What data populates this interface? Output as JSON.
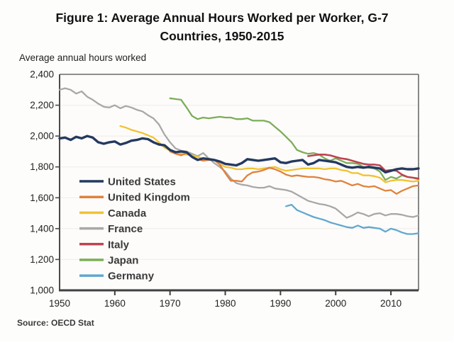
{
  "figure": {
    "title_line1": "Figure 1: Average Annual Hours Worked per Worker, G-7",
    "title_line2": "Countries, 1950-2015",
    "y_axis_title": "Average annual hours worked",
    "source": "Source: OECD Stat"
  },
  "chart_data": {
    "type": "line",
    "title": "Figure 1: Average Annual Hours Worked per Worker, G-7 Countries, 1950-2015",
    "xlabel": "",
    "ylabel": "Average annual hours worked",
    "x_range": [
      1950,
      2015
    ],
    "ylim": [
      1000,
      2400
    ],
    "grid": "faint horizontal lines at each y tick",
    "legend_position": "inside lower-left",
    "y_ticks": [
      {
        "value": 1000,
        "label": "1,000"
      },
      {
        "value": 1200,
        "label": "1,200"
      },
      {
        "value": 1400,
        "label": "1,400"
      },
      {
        "value": 1600,
        "label": "1,600"
      },
      {
        "value": 1800,
        "label": "1,800"
      },
      {
        "value": 2000,
        "label": "2,000"
      },
      {
        "value": 2200,
        "label": "2,200"
      },
      {
        "value": 2400,
        "label": "2,400"
      }
    ],
    "x_ticks": [
      {
        "value": 1950,
        "label": "1950"
      },
      {
        "value": 1960,
        "label": "1960"
      },
      {
        "value": 1970,
        "label": "1970"
      },
      {
        "value": 1980,
        "label": "1980"
      },
      {
        "value": 1990,
        "label": "1990"
      },
      {
        "value": 2000,
        "label": "2000"
      },
      {
        "value": 2010,
        "label": "2010"
      }
    ],
    "colors": {
      "plot_bg": "#fdfcfb",
      "gridline": "#efece7",
      "axis_dark": "#3f3f3f",
      "axis_mid": "#4a4a4a",
      "axis_light": "#6a6a6a",
      "tick_label": "#1f1f1f",
      "legend_text": "#3a3a3a"
    },
    "draw_order": [
      "France",
      "Canada",
      "United Kingdom",
      "Japan",
      "Germany",
      "Italy",
      "United States"
    ],
    "series": [
      {
        "name": "United States",
        "color": "#243960",
        "stroke_width": 3.4,
        "start_year": 1950,
        "values": [
          1985,
          1990,
          1975,
          1995,
          1985,
          2000,
          1990,
          1960,
          1950,
          1960,
          1965,
          1945,
          1955,
          1970,
          1975,
          1985,
          1980,
          1960,
          1945,
          1940,
          1910,
          1895,
          1900,
          1895,
          1865,
          1845,
          1855,
          1850,
          1845,
          1835,
          1820,
          1815,
          1810,
          1825,
          1850,
          1845,
          1840,
          1845,
          1850,
          1855,
          1830,
          1825,
          1835,
          1840,
          1845,
          1815,
          1825,
          1845,
          1840,
          1835,
          1830,
          1815,
          1800,
          1795,
          1800,
          1795,
          1800,
          1795,
          1790,
          1765,
          1775,
          1785,
          1790,
          1785,
          1785,
          1790
        ]
      },
      {
        "name": "United Kingdom",
        "color": "#e2813b",
        "stroke_width": 2.3,
        "start_year": 1970,
        "values": [
          1900,
          1885,
          1875,
          1890,
          1865,
          1850,
          1840,
          1845,
          1845,
          1815,
          1760,
          1710,
          1710,
          1705,
          1745,
          1765,
          1770,
          1780,
          1795,
          1785,
          1770,
          1750,
          1740,
          1745,
          1740,
          1735,
          1735,
          1730,
          1720,
          1715,
          1705,
          1710,
          1695,
          1680,
          1690,
          1675,
          1670,
          1675,
          1660,
          1645,
          1650,
          1625,
          1645,
          1660,
          1675,
          1680
        ]
      },
      {
        "name": "Canada",
        "color": "#f1c232",
        "stroke_width": 2.3,
        "start_year": 1961,
        "values": [
          2065,
          2055,
          2040,
          2030,
          2020,
          2005,
          1990,
          1960,
          1925,
          1905,
          1890,
          1885,
          1880,
          1875,
          1865,
          1855,
          1855,
          1845,
          1820,
          1800,
          1795,
          1785,
          1785,
          1790,
          1790,
          1785,
          1790,
          1795,
          1800,
          1785,
          1775,
          1780,
          1785,
          1790,
          1790,
          1790,
          1790,
          1785,
          1790,
          1790,
          1780,
          1775,
          1760,
          1760,
          1745,
          1745,
          1740,
          1730,
          1700,
          1710,
          1715,
          1715,
          1710,
          1705,
          1710
        ]
      },
      {
        "name": "France",
        "color": "#a8a8a6",
        "stroke_width": 2.3,
        "start_year": 1950,
        "values": [
          2300,
          2310,
          2300,
          2275,
          2290,
          2255,
          2235,
          2210,
          2190,
          2185,
          2200,
          2180,
          2195,
          2185,
          2170,
          2160,
          2135,
          2115,
          2075,
          2010,
          1960,
          1920,
          1905,
          1900,
          1885,
          1870,
          1890,
          1855,
          1825,
          1800,
          1770,
          1725,
          1695,
          1685,
          1680,
          1670,
          1665,
          1665,
          1675,
          1660,
          1655,
          1650,
          1640,
          1620,
          1600,
          1580,
          1570,
          1560,
          1555,
          1545,
          1530,
          1500,
          1470,
          1485,
          1505,
          1495,
          1480,
          1495,
          1500,
          1485,
          1495,
          1495,
          1490,
          1480,
          1475,
          1485
        ]
      },
      {
        "name": "Italy",
        "color": "#bf4450",
        "stroke_width": 2.6,
        "start_year": 1995,
        "values": [
          1870,
          1875,
          1880,
          1880,
          1875,
          1865,
          1855,
          1850,
          1840,
          1830,
          1820,
          1815,
          1815,
          1810,
          1775,
          1780,
          1775,
          1750,
          1735,
          1730,
          1725
        ]
      },
      {
        "name": "Japan",
        "color": "#7cad58",
        "stroke_width": 2.3,
        "start_year": 1970,
        "values": [
          2245,
          2240,
          2235,
          2185,
          2130,
          2110,
          2120,
          2115,
          2120,
          2125,
          2120,
          2120,
          2110,
          2110,
          2115,
          2100,
          2100,
          2100,
          2090,
          2060,
          2030,
          1995,
          1960,
          1910,
          1895,
          1885,
          1890,
          1880,
          1855,
          1840,
          1855,
          1840,
          1825,
          1825,
          1820,
          1800,
          1795,
          1790,
          1770,
          1715,
          1735,
          1725,
          1745,
          1735,
          1730,
          1720
        ]
      },
      {
        "name": "Germany",
        "color": "#60a8cf",
        "stroke_width": 2.3,
        "start_year": 1991,
        "values": [
          1545,
          1555,
          1520,
          1505,
          1490,
          1475,
          1465,
          1455,
          1440,
          1430,
          1420,
          1410,
          1405,
          1420,
          1405,
          1410,
          1405,
          1400,
          1380,
          1400,
          1390,
          1375,
          1365,
          1365,
          1370
        ]
      }
    ]
  }
}
